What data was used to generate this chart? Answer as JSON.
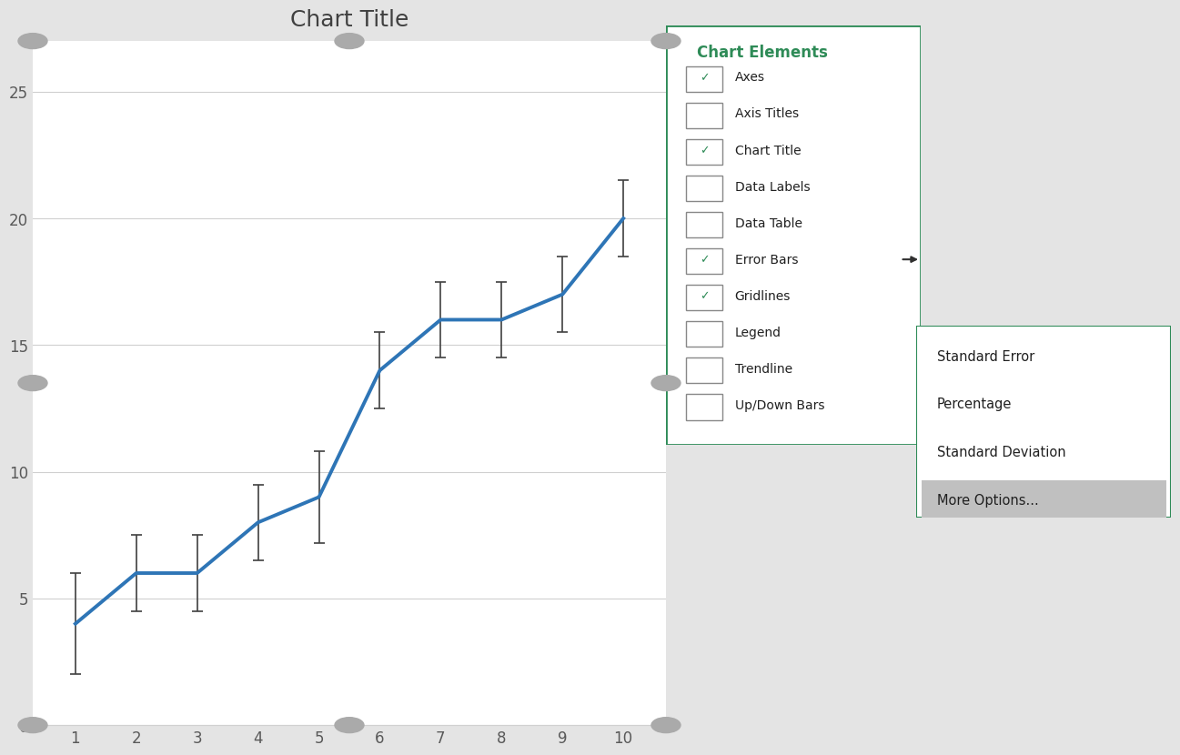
{
  "x": [
    1,
    2,
    3,
    4,
    5,
    6,
    7,
    8,
    9,
    10
  ],
  "y": [
    4,
    6,
    6,
    8,
    9,
    14,
    16,
    16,
    17,
    20
  ],
  "yerr": [
    2.0,
    1.5,
    1.5,
    1.5,
    1.8,
    1.5,
    1.5,
    1.5,
    1.5,
    1.5
  ],
  "line_color": "#2E75B6",
  "line_width": 2.8,
  "error_bar_color": "#404040",
  "error_bar_capsize": 4,
  "error_bar_linewidth": 1.2,
  "title": "Chart Title",
  "title_fontsize": 18,
  "title_color": "#404040",
  "xlim": [
    0.3,
    10.7
  ],
  "ylim": [
    0,
    27
  ],
  "yticks": [
    0,
    5,
    10,
    15,
    20,
    25
  ],
  "xticks": [
    1,
    2,
    3,
    4,
    5,
    6,
    7,
    8,
    9,
    10
  ],
  "grid_color": "#D0D0D0",
  "grid_linewidth": 0.8,
  "background_color": "#FFFFFF",
  "outer_bg_color": "#E4E4E4",
  "tick_label_fontsize": 12,
  "tick_label_color": "#595959",
  "chart_elements_title": "Chart Elements",
  "chart_elements_items": [
    {
      "label": "Axes",
      "checked": true
    },
    {
      "label": "Axis Titles",
      "checked": false
    },
    {
      "label": "Chart Title",
      "checked": true
    },
    {
      "label": "Data Labels",
      "checked": false
    },
    {
      "label": "Data Table",
      "checked": false
    },
    {
      "label": "Error Bars",
      "checked": true
    },
    {
      "label": "Gridlines",
      "checked": true
    },
    {
      "label": "Legend",
      "checked": false
    },
    {
      "label": "Trendline",
      "checked": false
    },
    {
      "label": "Up/Down Bars",
      "checked": false
    }
  ],
  "submenu_items": [
    "Standard Error",
    "Percentage",
    "Standard Deviation",
    "More Options..."
  ],
  "panel_border_color": "#2E8B57",
  "panel_bg_color": "#FFFFFF",
  "plus_btn_bg": "#5B9E6A",
  "check_color": "#2E8B57",
  "more_options_bg": "#C0C0C0",
  "handle_color": "#AAAAAA",
  "icon_area_bg": "#F0F0F0"
}
